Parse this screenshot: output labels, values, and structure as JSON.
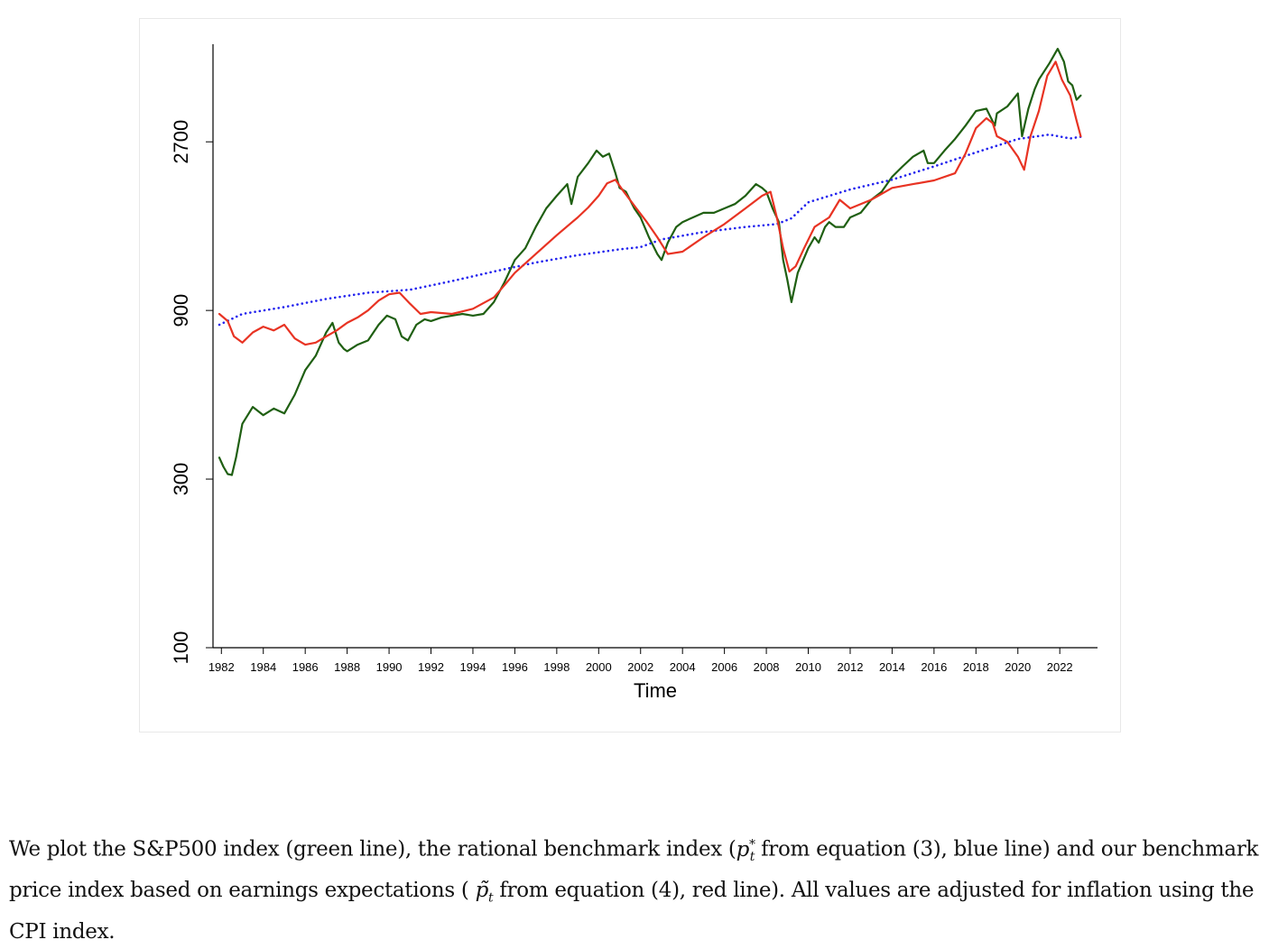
{
  "chart_data": {
    "type": "line",
    "title": "",
    "xlabel": "Time",
    "ylabel": "",
    "y_scale": "log",
    "xlim": [
      1981.6,
      2023.8
    ],
    "ylim": [
      100,
      5100
    ],
    "grid": false,
    "x_ticks": [
      1982,
      1984,
      1986,
      1988,
      1990,
      1992,
      1994,
      1996,
      1998,
      2000,
      2002,
      2004,
      2006,
      2008,
      2010,
      2012,
      2014,
      2016,
      2018,
      2020,
      2022
    ],
    "x_tick_labels": [
      "1982",
      "1984",
      "1986",
      "1988",
      "1990",
      "1992",
      "1994",
      "1996",
      "1998",
      "2000",
      "2002",
      "2004",
      "2006",
      "2008",
      "2010",
      "2012",
      "2014",
      "2016",
      "2018",
      "2020",
      "2022"
    ],
    "y_ticks": [
      100,
      300,
      900,
      2700
    ],
    "y_tick_labels": [
      "100",
      "300",
      "900",
      "2700"
    ],
    "series": [
      {
        "color": "#1f5f12",
        "style": "solid",
        "x": [
          1981.9,
          1982.1,
          1982.3,
          1982.5,
          1982.7,
          1983.0,
          1983.5,
          1984.0,
          1984.5,
          1985.0,
          1985.5,
          1986.0,
          1986.5,
          1987.0,
          1987.3,
          1987.6,
          1987.85,
          1988.0,
          1988.5,
          1989.0,
          1989.5,
          1989.9,
          1990.3,
          1990.6,
          1990.9,
          1991.3,
          1991.7,
          1992.0,
          1992.5,
          1993.0,
          1993.5,
          1994.0,
          1994.5,
          1995.0,
          1995.5,
          1996.0,
          1996.5,
          1997.0,
          1997.5,
          1998.0,
          1998.5,
          1998.7,
          1999.0,
          1999.5,
          1999.9,
          2000.2,
          2000.5,
          2000.8,
          2001.0,
          2001.3,
          2001.7,
          2002.0,
          2002.4,
          2002.8,
          2003.0,
          2003.3,
          2003.7,
          2004.0,
          2004.5,
          2005.0,
          2005.5,
          2006.0,
          2006.5,
          2007.0,
          2007.5,
          2007.8,
          2008.0,
          2008.3,
          2008.6,
          2008.8,
          2009.0,
          2009.2,
          2009.5,
          2010.0,
          2010.3,
          2010.5,
          2010.8,
          2011.0,
          2011.3,
          2011.7,
          2012.0,
          2012.5,
          2013.0,
          2013.5,
          2014.0,
          2014.5,
          2015.0,
          2015.5,
          2015.7,
          2016.0,
          2016.5,
          2017.0,
          2017.5,
          2018.0,
          2018.5,
          2018.9,
          2019.0,
          2019.5,
          2020.0,
          2020.2,
          2020.5,
          2020.8,
          2021.0,
          2021.5,
          2021.9,
          2022.2,
          2022.4,
          2022.6,
          2022.8,
          2023.0
        ],
        "y": [
          345,
          325,
          310,
          308,
          345,
          430,
          480,
          455,
          475,
          460,
          520,
          610,
          670,
          780,
          830,
          730,
          700,
          690,
          720,
          740,
          820,
          870,
          850,
          760,
          740,
          820,
          850,
          840,
          860,
          870,
          880,
          870,
          880,
          950,
          1080,
          1250,
          1350,
          1550,
          1750,
          1900,
          2050,
          1800,
          2150,
          2350,
          2550,
          2450,
          2500,
          2200,
          2000,
          1950,
          1750,
          1650,
          1450,
          1300,
          1250,
          1400,
          1550,
          1600,
          1650,
          1700,
          1700,
          1750,
          1800,
          1900,
          2050,
          2000,
          1950,
          1750,
          1600,
          1250,
          1100,
          950,
          1150,
          1350,
          1450,
          1400,
          1550,
          1600,
          1550,
          1550,
          1650,
          1700,
          1850,
          1950,
          2150,
          2300,
          2450,
          2550,
          2350,
          2350,
          2550,
          2750,
          3000,
          3300,
          3350,
          3000,
          3250,
          3400,
          3700,
          2800,
          3350,
          3800,
          4050,
          4500,
          4950,
          4550,
          4000,
          3900,
          3550,
          3650
        ]
      },
      {
        "color": "#2222ee",
        "style": "dotted",
        "x": [
          1981.9,
          1983,
          1985,
          1987,
          1989,
          1991,
          1993,
          1995,
          1997,
          1999,
          2001,
          2002,
          2003,
          2005,
          2007,
          2008.5,
          2009.2,
          2010,
          2012,
          2014,
          2016,
          2018,
          2020,
          2021.5,
          2022.5,
          2023
        ],
        "y": [
          820,
          880,
          920,
          970,
          1010,
          1030,
          1090,
          1160,
          1230,
          1290,
          1340,
          1360,
          1430,
          1500,
          1550,
          1580,
          1640,
          1820,
          1980,
          2110,
          2300,
          2520,
          2750,
          2830,
          2760,
          2790
        ]
      },
      {
        "color": "#e83323",
        "style": "solid",
        "x": [
          1981.9,
          1982.3,
          1982.6,
          1983.0,
          1983.5,
          1984.0,
          1984.5,
          1985.0,
          1985.5,
          1986.0,
          1986.5,
          1987.0,
          1987.5,
          1988.0,
          1988.5,
          1989.0,
          1989.5,
          1990.0,
          1990.5,
          1991.0,
          1991.5,
          1992.0,
          1993.0,
          1994.0,
          1995.0,
          1995.5,
          1996.0,
          1997.0,
          1998.0,
          1999.0,
          1999.5,
          2000.0,
          2000.4,
          2000.8,
          2001.2,
          2001.8,
          2002.3,
          2002.8,
          2003.3,
          2004.0,
          2005.0,
          2006.0,
          2007.0,
          2007.8,
          2008.2,
          2008.5,
          2008.8,
          2009.1,
          2009.4,
          2009.8,
          2010.3,
          2011.0,
          2011.5,
          2012.0,
          2013.0,
          2014.0,
          2015.0,
          2016.0,
          2017.0,
          2017.5,
          2018.0,
          2018.5,
          2018.8,
          2019.0,
          2019.5,
          2020.0,
          2020.3,
          2020.6,
          2021.0,
          2021.4,
          2021.8,
          2022.1,
          2022.5,
          2022.8,
          2023.0
        ],
        "y": [
          880,
          840,
          760,
          730,
          780,
          810,
          790,
          820,
          750,
          720,
          730,
          760,
          790,
          830,
          860,
          900,
          960,
          1000,
          1010,
          940,
          880,
          890,
          880,
          910,
          980,
          1060,
          1150,
          1300,
          1470,
          1650,
          1760,
          1900,
          2060,
          2110,
          1950,
          1750,
          1600,
          1450,
          1300,
          1320,
          1450,
          1580,
          1750,
          1900,
          1950,
          1650,
          1350,
          1160,
          1200,
          1350,
          1550,
          1650,
          1850,
          1750,
          1850,
          2000,
          2050,
          2100,
          2200,
          2500,
          2950,
          3150,
          3050,
          2800,
          2700,
          2450,
          2250,
          2800,
          3300,
          4150,
          4550,
          4050,
          3650,
          3100,
          2800
        ]
      }
    ]
  },
  "caption": {
    "part1": "We plot the S&P500 index (green line), the rational benchmark index (",
    "math1": "p",
    "math1_sub": "t",
    "math1_sup": "*",
    "part2": " from equation (3), blue line) and our benchmark price index based on earnings expectations ( ",
    "math2": "p̃",
    "math2_sub": "t",
    "part3": " from equation (4), red line).  All values are adjusted for inflation using the CPI index."
  }
}
